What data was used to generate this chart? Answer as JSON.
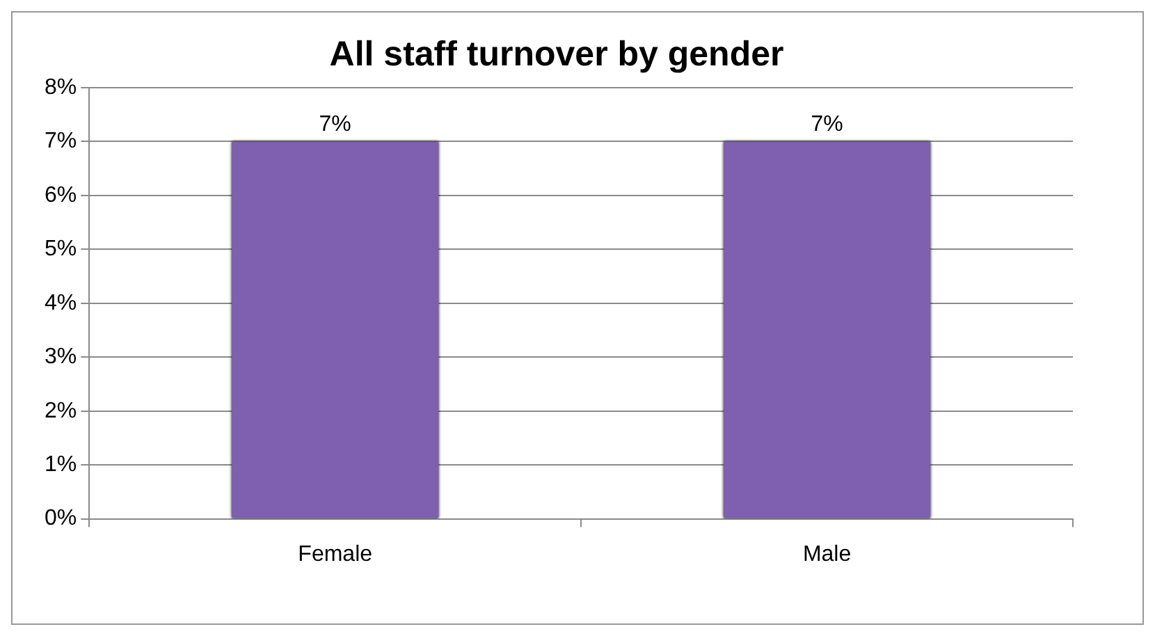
{
  "chart_data": {
    "type": "bar",
    "title": "All staff turnover by gender",
    "categories": [
      "Female",
      "Male"
    ],
    "values": [
      7,
      7
    ],
    "value_labels": [
      "7%",
      "7%"
    ],
    "color": "#7e5fb0",
    "ylim": [
      0,
      8
    ],
    "yticks": [
      {
        "value": 0,
        "label": "0%"
      },
      {
        "value": 1,
        "label": "1%"
      },
      {
        "value": 2,
        "label": "2%"
      },
      {
        "value": 3,
        "label": "3%"
      },
      {
        "value": 4,
        "label": "4%"
      },
      {
        "value": 5,
        "label": "5%"
      },
      {
        "value": 6,
        "label": "6%"
      },
      {
        "value": 7,
        "label": "7%"
      },
      {
        "value": 8,
        "label": "8%"
      }
    ],
    "grid": "y",
    "legend": false
  }
}
